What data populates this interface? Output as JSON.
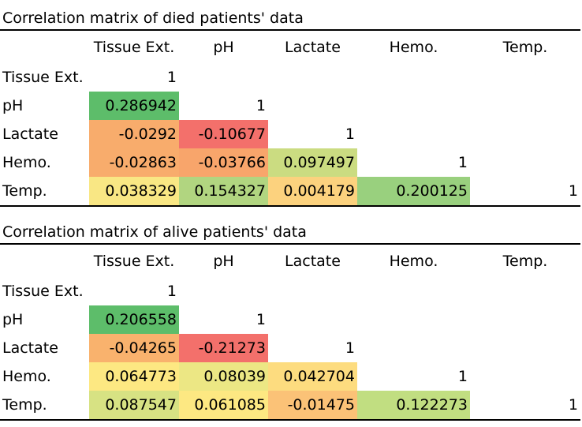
{
  "tables": [
    {
      "title": "Correlation matrix of died patients' data",
      "columns": [
        "Tissue Ext.",
        "pH",
        "Lactate",
        "Hemo.",
        "Temp."
      ],
      "rows": [
        {
          "label": "Tissue Ext.",
          "cells": [
            {
              "v": "1",
              "c": ""
            }
          ]
        },
        {
          "label": "pH",
          "cells": [
            {
              "v": "0.286942",
              "c": "#5dbd6a"
            },
            {
              "v": "1",
              "c": ""
            }
          ]
        },
        {
          "label": "Lactate",
          "cells": [
            {
              "v": "-0.0292",
              "c": "#f8ac6c"
            },
            {
              "v": "-0.10677",
              "c": "#f3706b"
            },
            {
              "v": "1",
              "c": ""
            }
          ]
        },
        {
          "label": "Hemo.",
          "cells": [
            {
              "v": "-0.02863",
              "c": "#f8ac6c"
            },
            {
              "v": "-0.03766",
              "c": "#f8a56b"
            },
            {
              "v": "0.097497",
              "c": "#cbdc81"
            },
            {
              "v": "1",
              "c": ""
            }
          ]
        },
        {
          "label": "Temp.",
          "cells": [
            {
              "v": "0.038329",
              "c": "#f9e784"
            },
            {
              "v": "0.154327",
              "c": "#b1d580"
            },
            {
              "v": "0.004179",
              "c": "#fcd27e"
            },
            {
              "v": "0.200125",
              "c": "#99d07e"
            },
            {
              "v": "1",
              "c": ""
            }
          ]
        }
      ]
    },
    {
      "title": "Correlation matrix of alive patients' data",
      "columns": [
        "Tissue Ext.",
        "pH",
        "Lactate",
        "Hemo.",
        "Temp."
      ],
      "rows": [
        {
          "label": "Tissue Ext.",
          "cells": [
            {
              "v": "1",
              "c": ""
            }
          ]
        },
        {
          "label": "pH",
          "cells": [
            {
              "v": "0.206558",
              "c": "#5dbd6a"
            },
            {
              "v": "1",
              "c": ""
            }
          ]
        },
        {
          "label": "Lactate",
          "cells": [
            {
              "v": "-0.04265",
              "c": "#f9b26d"
            },
            {
              "v": "-0.21273",
              "c": "#f3706b"
            },
            {
              "v": "1",
              "c": ""
            }
          ]
        },
        {
          "label": "Hemo.",
          "cells": [
            {
              "v": "0.064773",
              "c": "#fde882"
            },
            {
              "v": "0.08039",
              "c": "#ece784"
            },
            {
              "v": "0.042704",
              "c": "#fddc7f"
            },
            {
              "v": "1",
              "c": ""
            }
          ]
        },
        {
          "label": "Temp.",
          "cells": [
            {
              "v": "0.087547",
              "c": "#d7e283"
            },
            {
              "v": "0.061085",
              "c": "#fde882"
            },
            {
              "v": "-0.01475",
              "c": "#fbc277"
            },
            {
              "v": "0.122273",
              "c": "#c1de81"
            },
            {
              "v": "1",
              "c": ""
            }
          ]
        }
      ]
    }
  ]
}
